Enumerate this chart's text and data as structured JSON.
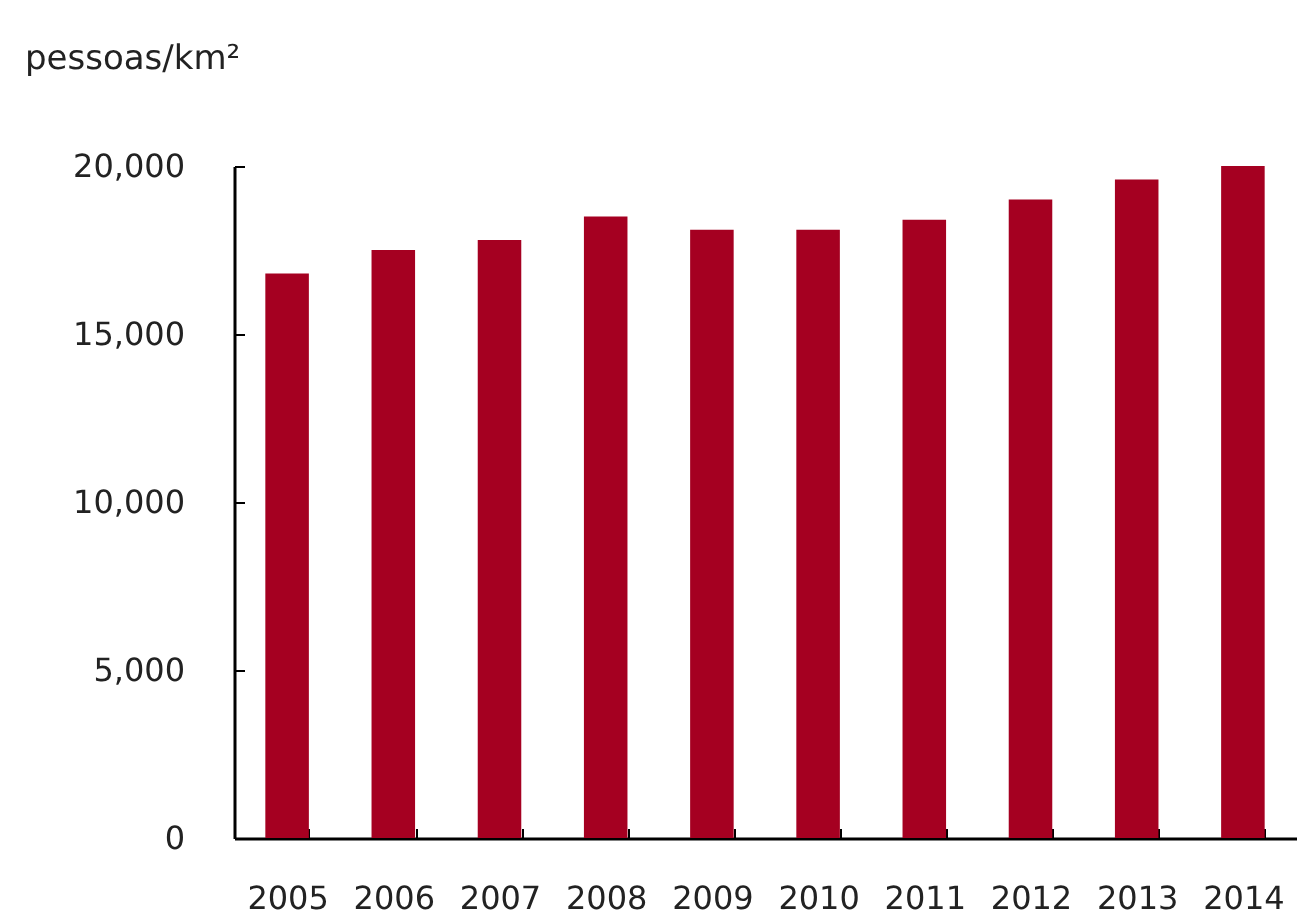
{
  "chart_data": {
    "type": "bar",
    "ylabel": "pessoas/km²",
    "categories": [
      "2005",
      "2006",
      "2007",
      "2008",
      "2009",
      "2010",
      "2011",
      "2012",
      "2013",
      "2014"
    ],
    "values": [
      16800,
      17500,
      17800,
      18500,
      18100,
      18100,
      18400,
      19000,
      19600,
      20000
    ],
    "color": "#a50021",
    "ylim": [
      0,
      20000
    ],
    "yticks": [
      0,
      {
        "value": 5000,
        "label": "5,000"
      },
      {
        "value": 10000,
        "label": "10,000"
      },
      {
        "value": 15000,
        "label": "15,000"
      },
      {
        "value": 20000,
        "label": "20,000"
      }
    ]
  }
}
